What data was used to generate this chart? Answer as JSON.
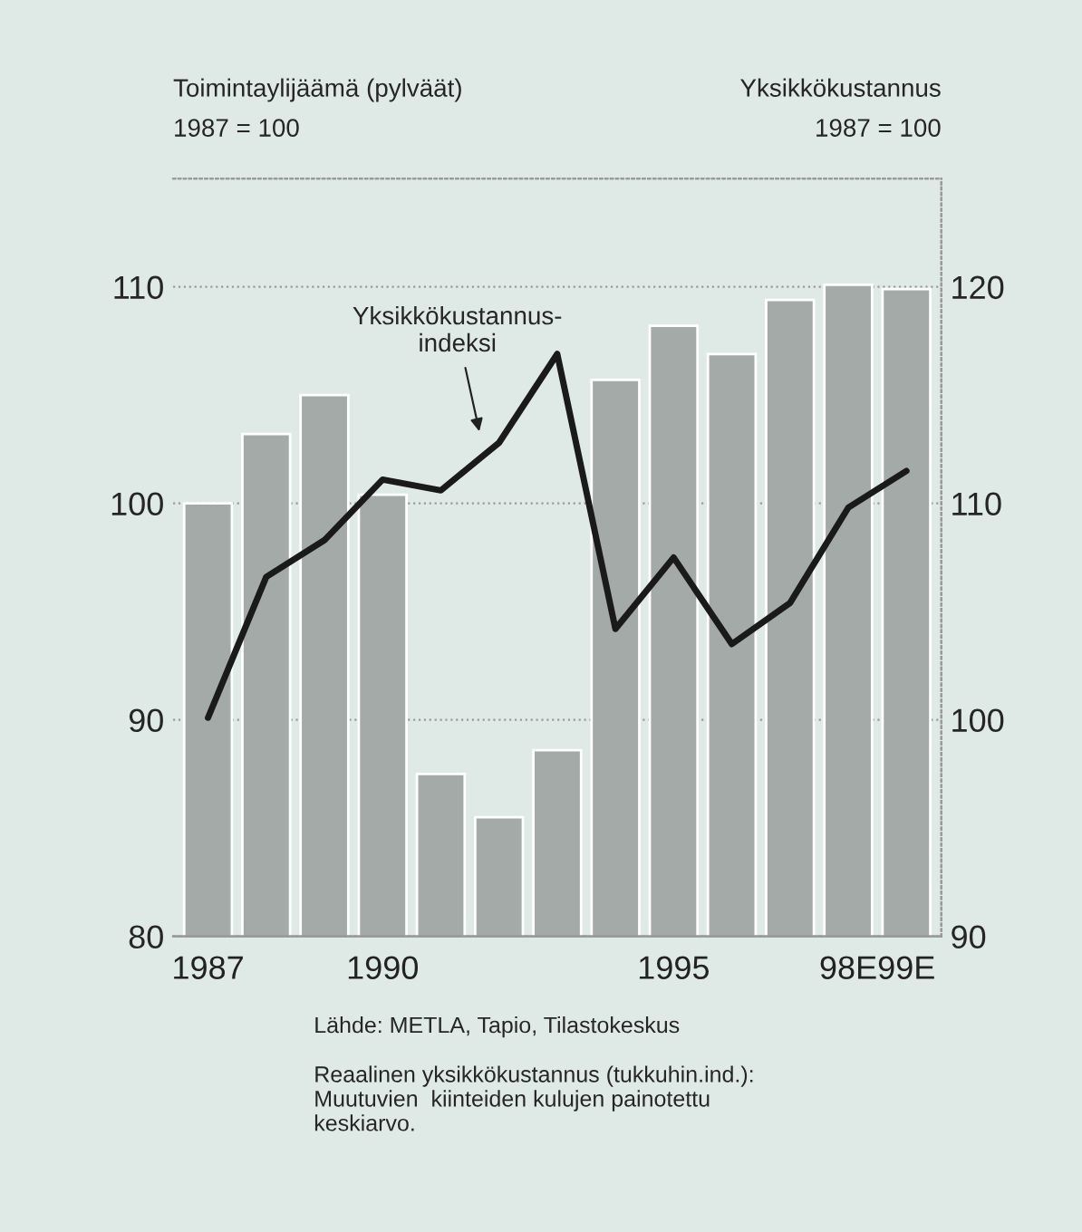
{
  "chart_data": {
    "type": "bar",
    "ylabel": "Toimintaylijäämä (pylväät)\n1987 = 100",
    "y2label": "Yksikkökustannus\n1987 = 100",
    "categories": [
      "1987",
      null,
      null,
      "1990",
      null,
      null,
      null,
      null,
      "1995",
      null,
      null,
      "98E",
      "99E"
    ],
    "series": [
      {
        "color": "#a3aaa7",
        "values": [
          100,
          103.2,
          105,
          100.4,
          87.5,
          85.5,
          88.6,
          105.7,
          108.2,
          106.9,
          109.4,
          110.1,
          109.9
        ]
      },
      {
        "type": "line",
        "axis": "y2",
        "color": "#1a1a1a",
        "values": [
          100.1,
          106.6,
          108.3,
          111.1,
          110.6,
          112.8,
          116.9,
          104.2,
          107.5,
          103.5,
          105.4,
          109.8,
          111.5
        ]
      }
    ],
    "ylim": [
      80,
      115
    ],
    "yticks": [
      80,
      90,
      100,
      110
    ],
    "y2lim": [
      90,
      125
    ],
    "y2ticks": [
      90,
      100,
      110,
      120
    ],
    "grid": "y",
    "annotations": [
      "Yksikkökustannus-\nindeksi",
      "Lähde: METLA, Tapio, Tilastokeskus",
      "Reaalinen yksikkökustannus (tukkuhin.ind.):\nMuutuvien  kiinteiden kulujen painotettu\nkeskiarvo."
    ]
  }
}
